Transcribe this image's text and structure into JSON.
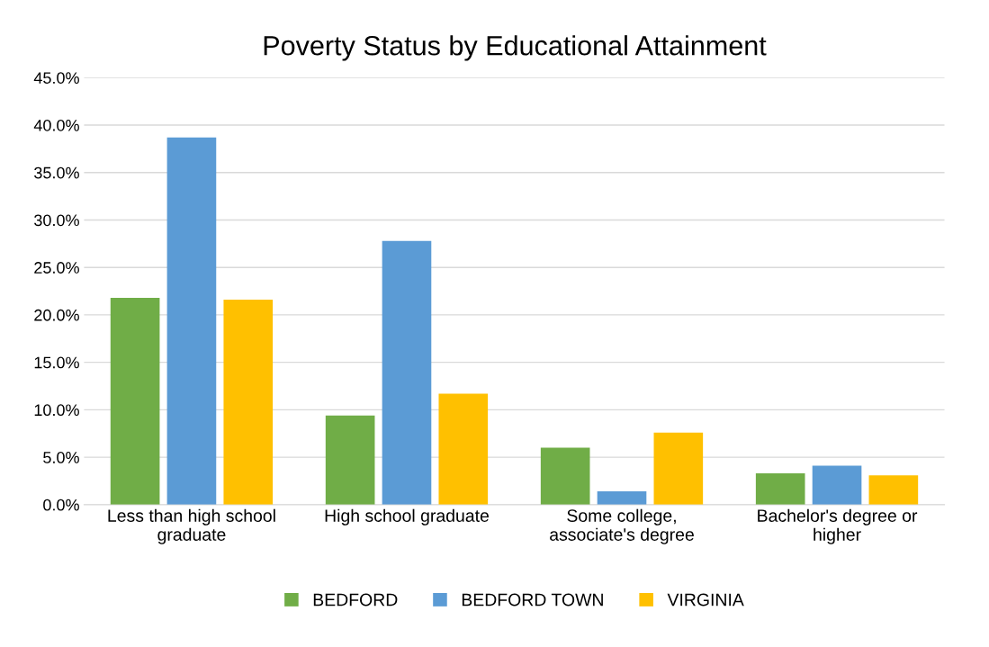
{
  "chart_data": {
    "type": "bar",
    "title": "Poverty Status by Educational Attainment",
    "categories": [
      "Less than high school\ngraduate",
      "High school graduate",
      "Some college,\nassociate's degree",
      "Bachelor's degree or\nhigher"
    ],
    "series": [
      {
        "name": "BEDFORD",
        "color": "#70ad47",
        "values": [
          21.8,
          9.4,
          6.0,
          3.3
        ]
      },
      {
        "name": "BEDFORD TOWN",
        "color": "#5b9bd5",
        "values": [
          38.7,
          27.8,
          1.4,
          4.1
        ]
      },
      {
        "name": "VIRGINIA",
        "color": "#ffc000",
        "values": [
          21.6,
          11.7,
          7.6,
          3.1
        ]
      }
    ],
    "ylim": [
      0,
      45
    ],
    "yticks": [
      {
        "value": 0,
        "label": "0.0%"
      },
      {
        "value": 5,
        "label": "5.0%"
      },
      {
        "value": 10,
        "label": "10.0%"
      },
      {
        "value": 15,
        "label": "15.0%"
      },
      {
        "value": 20,
        "label": "20.0%"
      },
      {
        "value": 25,
        "label": "25.0%"
      },
      {
        "value": 30,
        "label": "30.0%"
      },
      {
        "value": 35,
        "label": "35.0%"
      },
      {
        "value": 40,
        "label": "40.0%"
      },
      {
        "value": 45,
        "label": "45.0%"
      }
    ],
    "grid": "y",
    "legend": "bottom"
  }
}
